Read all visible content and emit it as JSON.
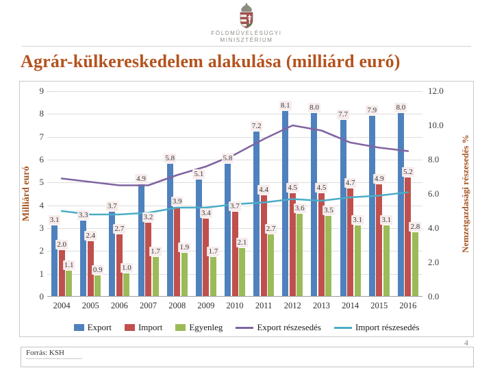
{
  "header": {
    "logo": "hungarian-coat-of-arms",
    "ministry_line1": "FÖLDMŰVELÉSÜGYI",
    "ministry_line2": "MINISZTÉRIUM"
  },
  "title": "Agrár-külkereskedelem alakulása (milliárd euró)",
  "chart_data": {
    "type": "bar",
    "subtype": "combo-bar-line",
    "categories": [
      "2004",
      "2005",
      "2006",
      "2007",
      "2008",
      "2009",
      "2010",
      "2011",
      "2012",
      "2013",
      "2014",
      "2015",
      "2016"
    ],
    "left_axis": {
      "label": "Milliárd euró",
      "min": 0,
      "max": 9,
      "tick_step": 1,
      "ticks": [
        "0",
        "1",
        "2",
        "3",
        "4",
        "5",
        "6",
        "7",
        "8",
        "9"
      ]
    },
    "right_axis": {
      "label": "Nemzetgazdasági részesedés %",
      "min": 0,
      "max": 12,
      "tick_step": 2,
      "ticks": [
        "0.0",
        "2.0",
        "4.0",
        "6.0",
        "8.0",
        "10.0",
        "12.0"
      ]
    },
    "grid": true,
    "legend_position": "bottom",
    "data_label_bg": "#f7ecec",
    "series": [
      {
        "key": "export",
        "name": "Export",
        "type": "bar",
        "axis": "left",
        "color": "#4F81BD",
        "values": [
          3.1,
          3.3,
          3.7,
          4.9,
          5.8,
          5.1,
          5.8,
          7.2,
          8.1,
          8.0,
          7.7,
          7.9,
          8.0
        ],
        "labels": true
      },
      {
        "key": "import",
        "name": "Import",
        "type": "bar",
        "axis": "left",
        "color": "#C0504D",
        "values": [
          2.0,
          2.4,
          2.7,
          3.2,
          3.9,
          3.4,
          3.7,
          4.4,
          4.5,
          4.5,
          4.7,
          4.9,
          5.2
        ],
        "labels": true
      },
      {
        "key": "egyenleg",
        "name": "Egyenleg",
        "type": "bar",
        "axis": "left",
        "color": "#9BBB59",
        "values": [
          1.1,
          0.9,
          1.0,
          1.7,
          1.9,
          1.7,
          2.1,
          2.7,
          3.6,
          3.5,
          3.1,
          3.1,
          2.8
        ],
        "labels": true
      },
      {
        "key": "export-share",
        "name": "Export részesedés",
        "type": "line",
        "axis": "right",
        "color": "#8064A2",
        "values": [
          6.9,
          6.7,
          6.5,
          6.5,
          7.1,
          7.6,
          8.3,
          9.2,
          10.0,
          9.7,
          9.0,
          8.7,
          8.5
        ],
        "labels": false
      },
      {
        "key": "import-share",
        "name": "Import részesedés",
        "type": "line",
        "axis": "right",
        "color": "#4BACC6",
        "values": [
          5.0,
          4.8,
          4.8,
          4.9,
          5.2,
          5.2,
          5.4,
          5.5,
          5.7,
          5.6,
          5.8,
          5.9,
          6.1
        ],
        "labels": false
      }
    ]
  },
  "footer": {
    "page_number": "4",
    "source": "Forrás: KSH"
  }
}
